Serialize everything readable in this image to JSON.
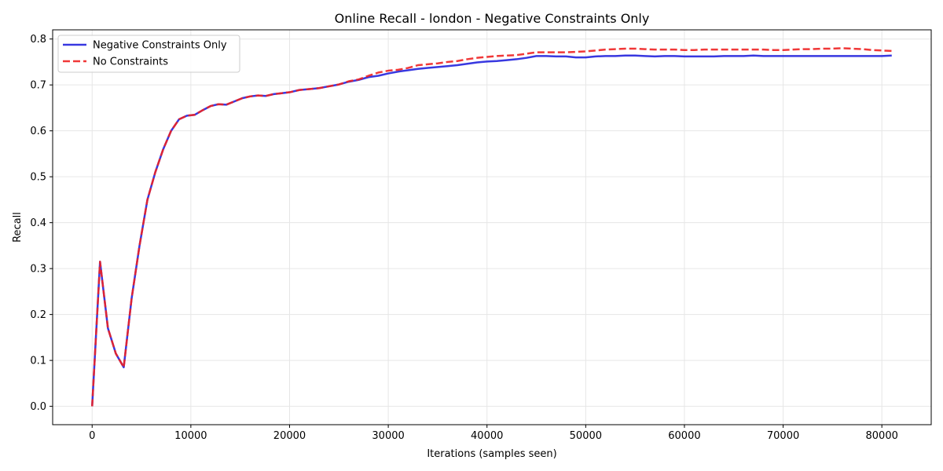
{
  "chart_data": {
    "type": "line",
    "title": "Online Recall - london - Negative Constraints Only",
    "xlabel": "Iterations (samples seen)",
    "ylabel": "Recall",
    "xlim": [
      -4000,
      85000
    ],
    "ylim": [
      -0.04,
      0.82
    ],
    "xticks": [
      0,
      10000,
      20000,
      30000,
      40000,
      50000,
      60000,
      70000,
      80000
    ],
    "xtick_labels": [
      "0",
      "10000",
      "20000",
      "30000",
      "40000",
      "50000",
      "60000",
      "70000",
      "80000"
    ],
    "yticks": [
      0.0,
      0.1,
      0.2,
      0.3,
      0.4,
      0.5,
      0.6,
      0.7,
      0.8
    ],
    "ytick_labels": [
      "0.0",
      "0.1",
      "0.2",
      "0.3",
      "0.4",
      "0.5",
      "0.6",
      "0.7",
      "0.8"
    ],
    "grid": true,
    "legend_position": "top-left",
    "series": [
      {
        "name": "Negative Constraints Only",
        "color": "#2222dd",
        "style": "solid",
        "x": [
          0,
          800,
          1600,
          2400,
          3200,
          4000,
          4800,
          5600,
          6400,
          7200,
          8000,
          8800,
          9600,
          10400,
          11200,
          12000,
          12800,
          13600,
          14400,
          15200,
          16000,
          16800,
          17600,
          18400,
          19200,
          20000,
          21000,
          22000,
          23000,
          24000,
          25000,
          26000,
          27000,
          28000,
          29000,
          30000,
          31000,
          32000,
          33000,
          34000,
          35000,
          36000,
          37000,
          38000,
          39000,
          40000,
          41000,
          42000,
          43000,
          44000,
          45000,
          46000,
          47000,
          48000,
          49000,
          50000,
          51000,
          52000,
          53000,
          54000,
          55000,
          56000,
          57000,
          58000,
          59000,
          60000,
          61000,
          62000,
          63000,
          64000,
          65000,
          66000,
          67000,
          68000,
          69000,
          70000,
          71000,
          72000,
          73000,
          74000,
          75000,
          76000,
          77000,
          78000,
          79000,
          80000,
          81000
        ],
        "y": [
          0.0,
          0.315,
          0.17,
          0.115,
          0.085,
          0.235,
          0.35,
          0.45,
          0.51,
          0.56,
          0.6,
          0.625,
          0.633,
          0.635,
          0.645,
          0.654,
          0.658,
          0.657,
          0.664,
          0.671,
          0.675,
          0.677,
          0.676,
          0.68,
          0.682,
          0.684,
          0.689,
          0.691,
          0.693,
          0.697,
          0.701,
          0.707,
          0.711,
          0.717,
          0.72,
          0.725,
          0.729,
          0.732,
          0.735,
          0.737,
          0.739,
          0.741,
          0.743,
          0.746,
          0.749,
          0.751,
          0.752,
          0.754,
          0.756,
          0.759,
          0.763,
          0.763,
          0.762,
          0.762,
          0.76,
          0.76,
          0.762,
          0.763,
          0.763,
          0.764,
          0.764,
          0.763,
          0.762,
          0.763,
          0.763,
          0.762,
          0.762,
          0.762,
          0.762,
          0.763,
          0.763,
          0.763,
          0.764,
          0.763,
          0.763,
          0.763,
          0.763,
          0.763,
          0.763,
          0.763,
          0.763,
          0.763,
          0.763,
          0.763,
          0.763,
          0.763,
          0.764
        ]
      },
      {
        "name": "No Constraints",
        "color": "#ee2222",
        "style": "dashed",
        "x": [
          0,
          800,
          1600,
          2400,
          3200,
          4000,
          4800,
          5600,
          6400,
          7200,
          8000,
          8800,
          9600,
          10400,
          11200,
          12000,
          12800,
          13600,
          14400,
          15200,
          16000,
          16800,
          17600,
          18400,
          19200,
          20000,
          21000,
          22000,
          23000,
          24000,
          25000,
          26000,
          27000,
          28000,
          29000,
          30000,
          31000,
          32000,
          33000,
          34000,
          35000,
          36000,
          37000,
          38000,
          39000,
          40000,
          41000,
          42000,
          43000,
          44000,
          45000,
          46000,
          47000,
          48000,
          49000,
          50000,
          51000,
          52000,
          53000,
          54000,
          55000,
          56000,
          57000,
          58000,
          59000,
          60000,
          61000,
          62000,
          63000,
          64000,
          65000,
          66000,
          67000,
          68000,
          69000,
          70000,
          71000,
          72000,
          73000,
          74000,
          75000,
          76000,
          77000,
          78000,
          79000,
          80000,
          81000
        ],
        "y": [
          0.0,
          0.315,
          0.17,
          0.115,
          0.085,
          0.235,
          0.35,
          0.45,
          0.51,
          0.56,
          0.6,
          0.625,
          0.633,
          0.635,
          0.645,
          0.654,
          0.658,
          0.657,
          0.664,
          0.671,
          0.675,
          0.677,
          0.676,
          0.68,
          0.682,
          0.684,
          0.689,
          0.691,
          0.693,
          0.697,
          0.701,
          0.708,
          0.712,
          0.72,
          0.727,
          0.731,
          0.733,
          0.737,
          0.743,
          0.745,
          0.747,
          0.75,
          0.752,
          0.756,
          0.759,
          0.761,
          0.763,
          0.764,
          0.765,
          0.768,
          0.771,
          0.771,
          0.771,
          0.771,
          0.772,
          0.773,
          0.775,
          0.777,
          0.778,
          0.779,
          0.779,
          0.778,
          0.777,
          0.777,
          0.777,
          0.776,
          0.776,
          0.777,
          0.777,
          0.777,
          0.777,
          0.777,
          0.777,
          0.777,
          0.776,
          0.776,
          0.777,
          0.778,
          0.778,
          0.779,
          0.779,
          0.78,
          0.779,
          0.778,
          0.776,
          0.775,
          0.774
        ]
      }
    ]
  }
}
